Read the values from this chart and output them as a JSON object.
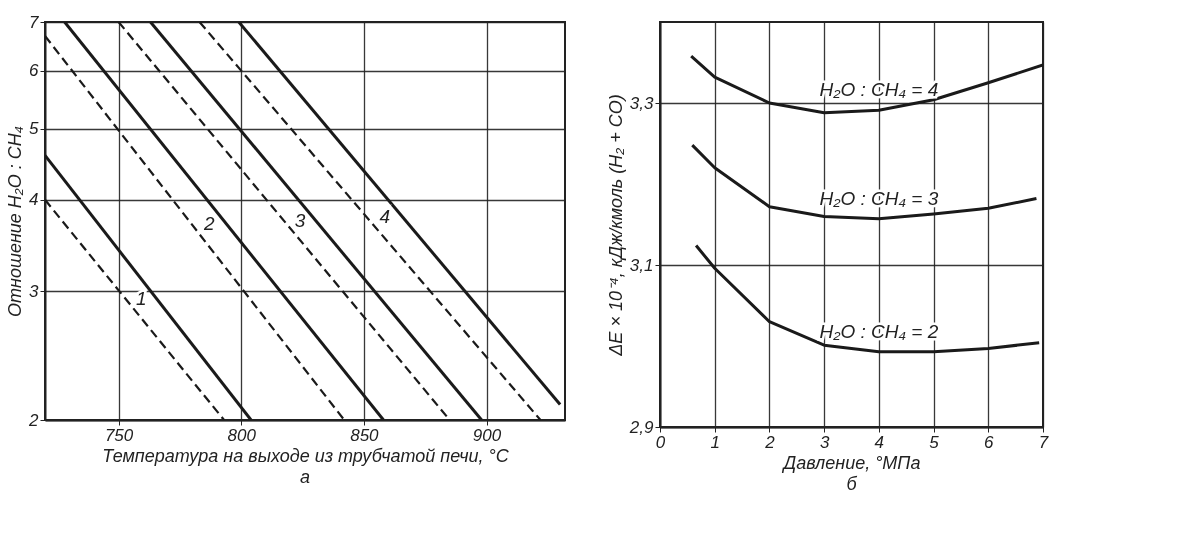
{
  "chart_data": [
    {
      "type": "line",
      "title": "а",
      "xlabel": "Температура на выходе из трубчатой печи, °C",
      "ylabel": "Отношение H₂O : CH₄",
      "log": "y",
      "grid": true,
      "marker": "none",
      "xlim": [
        720,
        932
      ],
      "xticks": [
        750,
        800,
        850,
        900
      ],
      "ylim": [
        2,
        7
      ],
      "yticks": [
        2,
        3,
        4,
        5,
        6,
        7
      ],
      "series": [
        {
          "color": "#1a1a1a",
          "line_style": "dashed",
          "x": [
            720,
            793
          ],
          "values": [
            4.0,
            2.0
          ]
        },
        {
          "color": "#1a1a1a",
          "line_style": "solid",
          "x": [
            720,
            804
          ],
          "values": [
            4.6,
            2.0
          ]
        },
        {
          "color": "#1a1a1a",
          "line_style": "dashed",
          "x": [
            720,
            842
          ],
          "values": [
            6.7,
            2.0
          ]
        },
        {
          "color": "#1a1a1a",
          "line_style": "solid",
          "x": [
            728,
            858
          ],
          "values": [
            7.0,
            2.0
          ]
        },
        {
          "color": "#1a1a1a",
          "line_style": "dashed",
          "x": [
            750,
            885
          ],
          "values": [
            7.0,
            2.0
          ]
        },
        {
          "color": "#1a1a1a",
          "line_style": "solid",
          "x": [
            763,
            898
          ],
          "values": [
            7.0,
            2.0
          ]
        },
        {
          "color": "#1a1a1a",
          "line_style": "dashed",
          "x": [
            783,
            922
          ],
          "values": [
            7.0,
            2.0
          ]
        },
        {
          "color": "#1a1a1a",
          "line_style": "solid",
          "x": [
            799,
            930
          ],
          "values": [
            7.0,
            2.1
          ]
        }
      ],
      "annotations": [
        "1",
        "2",
        "3",
        "4"
      ]
    },
    {
      "type": "line",
      "title": "б",
      "xlabel": "Давление, °МПа",
      "ylabel": "ΔE × 10⁻⁴, кДж/кмоль (H₂ + CO)",
      "grid": true,
      "marker": "none",
      "xlim": [
        0,
        7
      ],
      "xticks": [
        0,
        1,
        2,
        3,
        4,
        5,
        6,
        7
      ],
      "ylim": [
        2.9,
        3.4
      ],
      "yticks": [
        {
          "value": 2.9,
          "label": "2,9"
        },
        {
          "value": 3.1,
          "label": "3,1"
        },
        {
          "value": 3.3,
          "label": "3,3"
        }
      ],
      "series": [
        {
          "color": "#1a1a1a",
          "line_style": "solid",
          "x": [
            0.57,
            1,
            2,
            3,
            4,
            5,
            6,
            7
          ],
          "values": [
            3.358,
            3.332,
            3.3,
            3.288,
            3.291,
            3.304,
            3.325,
            3.347
          ]
        },
        {
          "color": "#1a1a1a",
          "line_style": "solid",
          "x": [
            0.59,
            1,
            2,
            3,
            4,
            5,
            6,
            6.88
          ],
          "values": [
            3.248,
            3.22,
            3.172,
            3.16,
            3.157,
            3.163,
            3.17,
            3.182
          ]
        },
        {
          "color": "#1a1a1a",
          "line_style": "solid",
          "x": [
            0.66,
            1,
            2,
            3,
            4,
            5,
            6,
            6.93
          ],
          "values": [
            3.124,
            3.096,
            3.03,
            3.001,
            2.993,
            2.993,
            2.997,
            3.004
          ]
        }
      ],
      "annotations": [
        "H₂O : CH₄ = 4",
        "H₂O : CH₄ = 3",
        "H₂O : CH₄ = 2"
      ]
    }
  ]
}
